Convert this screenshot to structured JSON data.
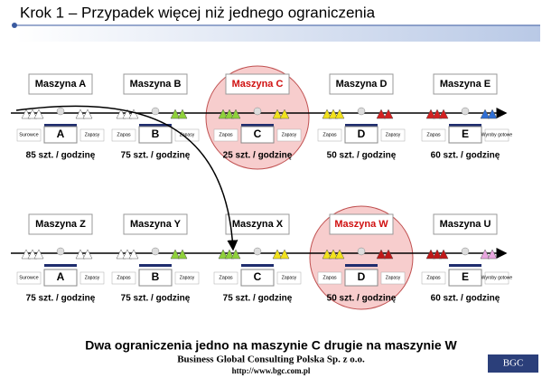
{
  "header": {
    "title": "Krok 1 – Przypadek więcej niż jednego ograniczenia"
  },
  "rows": [
    {
      "machines": [
        {
          "name": "Maszyna A",
          "letter": "A",
          "left_label": "Surowce",
          "right_label": "Zapasy",
          "rate": "85 szt. / godzinę",
          "color": "#ffffff",
          "highlight": false
        },
        {
          "name": "Maszyna B",
          "letter": "B",
          "left_label": "Zapas",
          "right_label": "Zapasy",
          "rate": "75 szt. / godzinę",
          "color": "#8fd13a",
          "highlight": false
        },
        {
          "name": "Maszyna C",
          "letter": "C",
          "left_label": "Zapas",
          "right_label": "Zapasy",
          "rate": "25 szt. / godzinę",
          "color": "#f2e21c",
          "highlight": true
        },
        {
          "name": "Maszyna D",
          "letter": "D",
          "left_label": "Zapas",
          "right_label": "Zapasy",
          "rate": "50 szt. / godzinę",
          "color": "#d42020",
          "highlight": false
        },
        {
          "name": "Maszyna E",
          "letter": "E",
          "left_label": "Zapas",
          "right_label": "Wyroby gotowe",
          "rate": "60 szt. / godzinę",
          "color": "#2f6fd6",
          "highlight": false
        }
      ]
    },
    {
      "machines": [
        {
          "name": "Maszyna Z",
          "letter": "A",
          "left_label": "Surowce",
          "right_label": "Zapasy",
          "rate": "75 szt. / godzinę",
          "color": "#ffffff",
          "highlight": false
        },
        {
          "name": "Maszyna Y",
          "letter": "B",
          "left_label": "Zapas",
          "right_label": "Zapasy",
          "rate": "75 szt. / godzinę",
          "color": "#8fd13a",
          "highlight": false
        },
        {
          "name": "Maszyna X",
          "letter": "C",
          "left_label": "Zapas",
          "right_label": "Zapasy",
          "rate": "75 szt. / godzinę",
          "color": "#f2e21c",
          "highlight": false
        },
        {
          "name": "Maszyna W",
          "letter": "D",
          "left_label": "Zapas",
          "right_label": "Zapasy",
          "rate": "50 szt. / godzinę",
          "color": "#c01818",
          "highlight": true
        },
        {
          "name": "Maszyna U",
          "letter": "E",
          "left_label": "Zapas",
          "right_label": "Wyroby gotowe",
          "rate": "60 szt. / godzinę",
          "color": "#e9a6e0",
          "highlight": false
        }
      ]
    }
  ],
  "footer": {
    "summary": "Dwa ograniczenia jedno na maszynie C drugie na maszynie W",
    "company": "Business Global Consulting Polska Sp. z o.o.",
    "url": "http://www.bgc.com.pl",
    "logo": "BGC"
  }
}
